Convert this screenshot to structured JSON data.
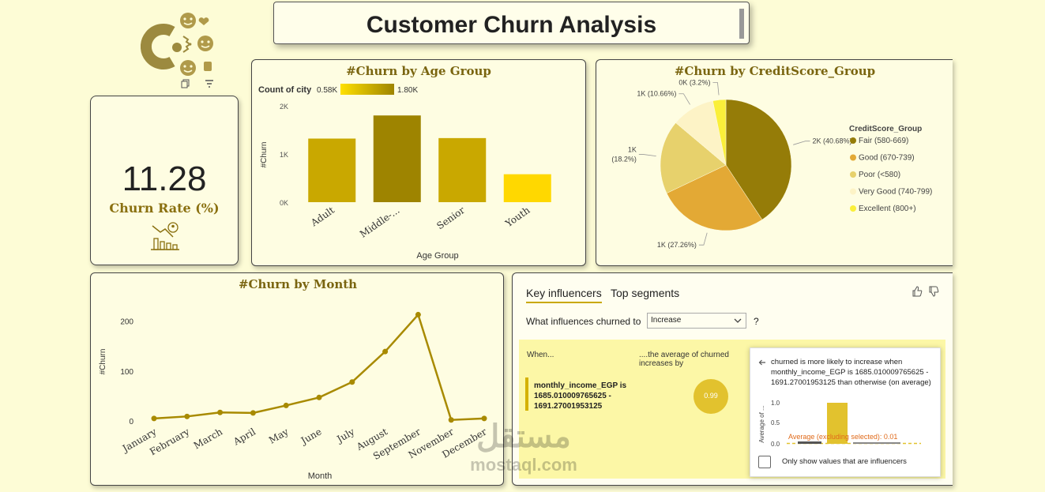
{
  "title": "Customer Churn Analysis",
  "visual_header_icons": [
    "copy-icon",
    "filter-icon",
    "more-options-icon"
  ],
  "kpi": {
    "value": "11.28",
    "label": "Churn Rate (%)",
    "icon": "chart-decline-user-icon"
  },
  "watermark": {
    "arabic": "مستقل",
    "latin": "mostaql.com"
  },
  "colors": {
    "gold_dark": "#9a8400",
    "gold": "#c9a800",
    "yellow": "#ffd800",
    "title_text": "#7a6510"
  },
  "chart_data": [
    {
      "type": "bar",
      "title": "#Churn by Age Group",
      "legend_title": "Count of city",
      "legend_min_label": "0.58K",
      "legend_max_label": "1.80K",
      "xlabel": "Age Group",
      "ylabel": "#Churn",
      "categories": [
        "Adult",
        "Middle-...",
        "Senior",
        "Youth"
      ],
      "values": [
        1320,
        1800,
        1330,
        580
      ],
      "colors": [
        "#c9a800",
        "#9e8400",
        "#c9a800",
        "#ffd800"
      ],
      "ylim": [
        0,
        2000
      ],
      "yticks": [
        0,
        1000,
        2000
      ],
      "ytick_labels": [
        "0K",
        "1K",
        "2K"
      ]
    },
    {
      "type": "pie",
      "title": "#Churn by CreditScore_Group",
      "legend_title": "CreditScore_Group",
      "legend_position": "right",
      "slices": [
        {
          "name": "Fair (580-669)",
          "value": 40.68,
          "label": "2K (40.68%)",
          "color": "#957c08"
        },
        {
          "name": "Good (670-739)",
          "value": 27.26,
          "label": "1K (27.26%)",
          "color": "#e3a935"
        },
        {
          "name": "Poor (<580)",
          "value": 18.2,
          "label": "1K",
          "label2": "(18.2%)",
          "color": "#e7d16c"
        },
        {
          "name": "Very Good (740-799)",
          "value": 10.66,
          "label": "1K (10.66%)",
          "color": "#fdf3c6"
        },
        {
          "name": "Excellent (800+)",
          "value": 3.2,
          "label": "0K (3.2%)",
          "color": "#faef3a"
        }
      ]
    },
    {
      "type": "line",
      "title": "#Churn by Month",
      "xlabel": "Month",
      "ylabel": "#Churn",
      "categories": [
        "January",
        "February",
        "March",
        "April",
        "May",
        "June",
        "July",
        "August",
        "September",
        "November",
        "December"
      ],
      "values": [
        5,
        9,
        17,
        16,
        31,
        47,
        78,
        139,
        213,
        2,
        5
      ],
      "ylim": [
        0,
        220
      ],
      "yticks": [
        0,
        100,
        200
      ],
      "color": "#a88a00"
    }
  ],
  "key_influencers": {
    "tabs": [
      {
        "label": "Key influencers",
        "active": true
      },
      {
        "label": "Top segments",
        "active": false
      }
    ],
    "question": "What influences churned to",
    "selected": "Increase",
    "help": "?",
    "when_header": "When...",
    "avg_header": "....the average of churned increases by",
    "influencer_text": "monthly_income_EGP is 1685.010009765625 - 1691.27001953125",
    "bubble_value": "0.99",
    "detail_text": "churned is more likely to increase when monthly_income_EGP is 1685.010009765625 - 1691.27001953125 than otherwise (on average)",
    "mini_chart": {
      "ylabel": "Average of ...",
      "ytick_labels": [
        "1.0",
        "0.5",
        "0.0"
      ],
      "selected_value": 1.0,
      "average_label": "Average (excluding selected): 0.01",
      "average_value": 0.01
    },
    "checkbox_label": "Only show values that are influencers",
    "checkbox_checked": false
  }
}
